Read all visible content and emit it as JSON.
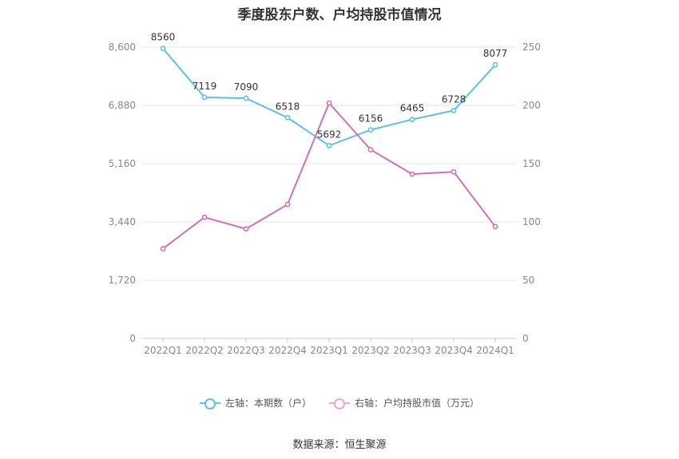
{
  "chart_data": {
    "type": "line",
    "title": "季度股东户数、户均持股市值情况",
    "categories": [
      "2022Q1",
      "2022Q2",
      "2022Q3",
      "2022Q4",
      "2023Q1",
      "2023Q2",
      "2023Q3",
      "2023Q4",
      "2024Q1"
    ],
    "left_axis": {
      "ticks": [
        "0",
        "1,720",
        "3,440",
        "5,160",
        "6,880",
        "8,600"
      ],
      "range": [
        0,
        8600
      ]
    },
    "right_axis": {
      "ticks": [
        "0",
        "50",
        "100",
        "150",
        "200",
        "250"
      ],
      "range": [
        0,
        250
      ]
    },
    "series": [
      {
        "name": "左轴：本期数（户）",
        "axis": "left",
        "color": "#5bc0eb",
        "values": [
          8560,
          7119,
          7090,
          6518,
          5692,
          6156,
          6465,
          6728,
          8077
        ],
        "labels": [
          "8560",
          "7119",
          "7090",
          "6518",
          "5692",
          "6156",
          "6465",
          "6728",
          "8077"
        ]
      },
      {
        "name": "右轴：户均持股市值（万元）",
        "axis": "right",
        "color": "#d36fb5",
        "values": [
          77,
          104,
          94,
          115,
          202,
          162,
          141,
          143,
          96
        ]
      }
    ],
    "grid": true,
    "legend_position": "bottom"
  },
  "source_text": "数据来源：恒生聚源"
}
